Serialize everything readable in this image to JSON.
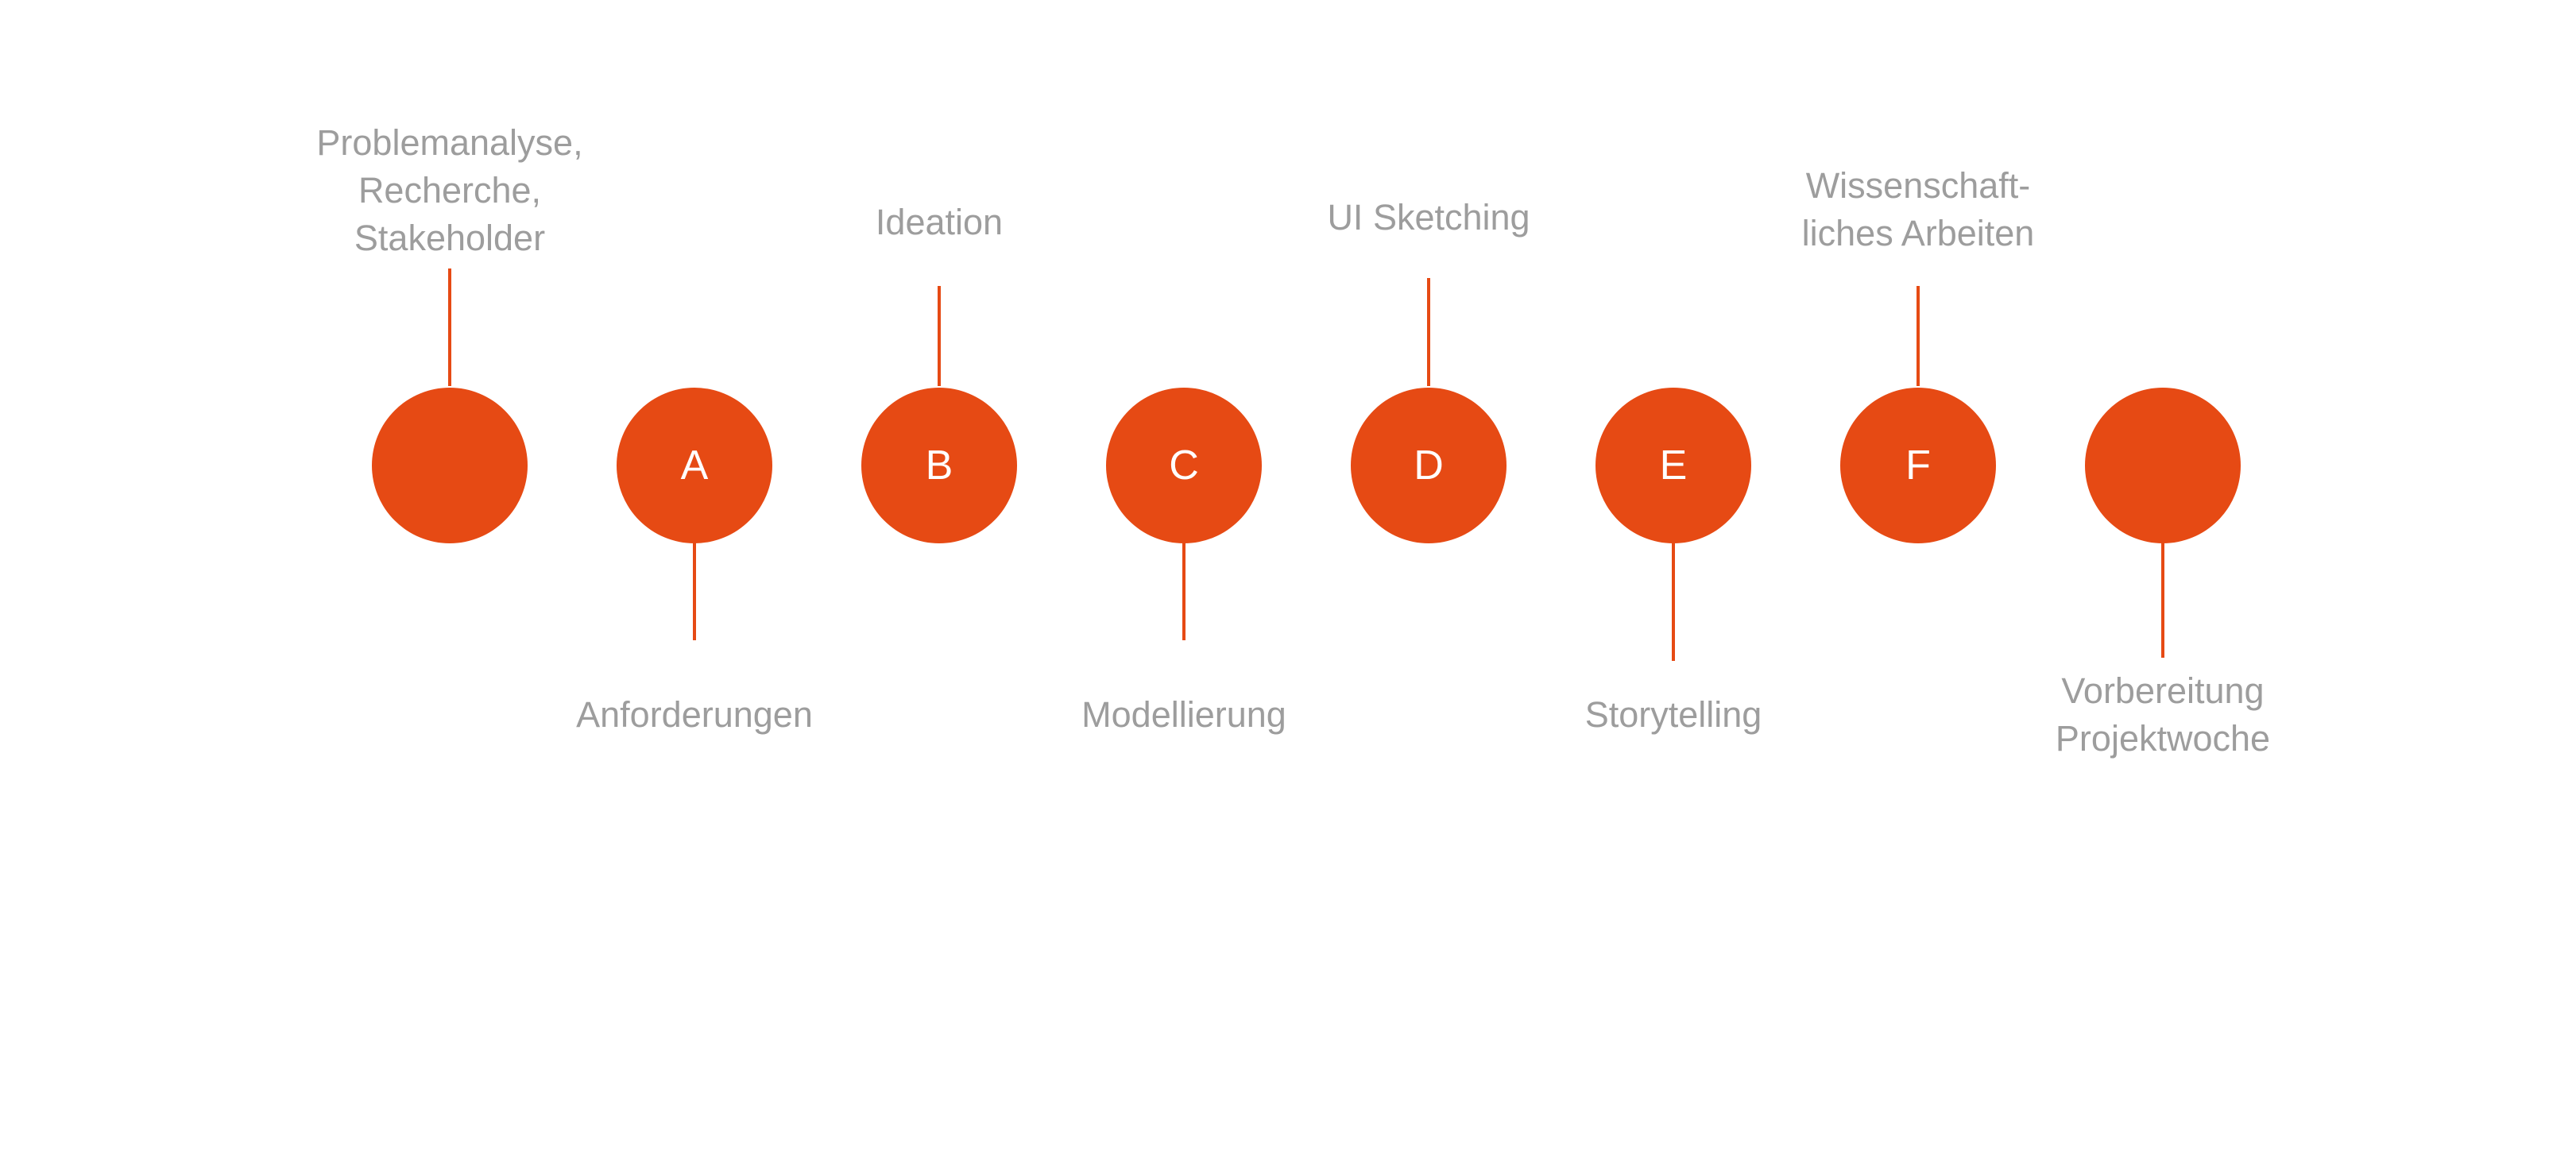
{
  "colors": {
    "node": "#E64A14",
    "connector": "#E64A14",
    "label": "#9d9d9d",
    "letter": "#FFFFFF",
    "background": "#FFFFFF"
  },
  "steps": [
    {
      "letter": "",
      "label_position": "above",
      "label_lines": [
        "Problemanalyse,",
        "Recherche,",
        "Stakeholder"
      ]
    },
    {
      "letter": "A",
      "label_position": "below",
      "label_lines": [
        "Anforderungen"
      ]
    },
    {
      "letter": "B",
      "label_position": "above",
      "label_lines": [
        "Ideation"
      ]
    },
    {
      "letter": "C",
      "label_position": "below",
      "label_lines": [
        "Modellierung"
      ]
    },
    {
      "letter": "D",
      "label_position": "above",
      "label_lines": [
        "UI Sketching"
      ]
    },
    {
      "letter": "E",
      "label_position": "below",
      "label_lines": [
        "Storytelling"
      ]
    },
    {
      "letter": "F",
      "label_position": "above",
      "label_lines": [
        "Wissenschaft-",
        "liches Arbeiten"
      ]
    },
    {
      "letter": "",
      "label_position": "below",
      "label_lines": [
        "Vorbereitung",
        "Projektwoche"
      ]
    }
  ]
}
